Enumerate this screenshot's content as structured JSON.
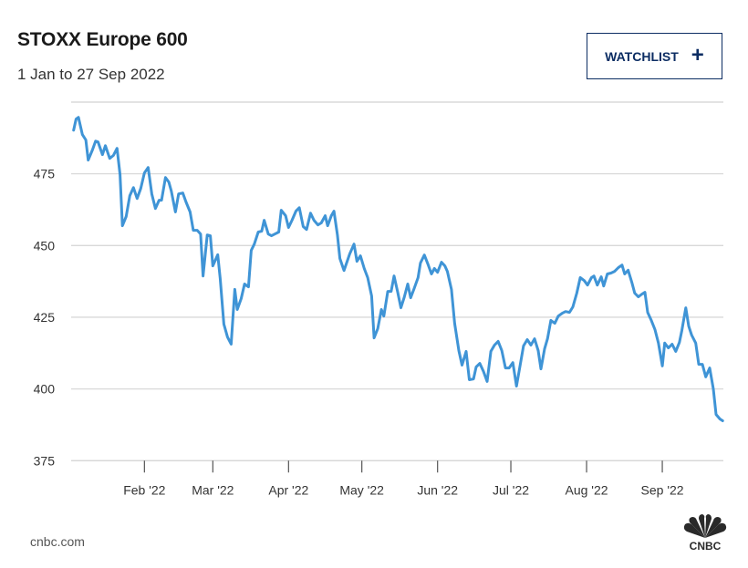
{
  "header": {
    "title": "STOXX Europe 600",
    "subtitle": "1 Jan to 27 Sep 2022"
  },
  "watchlist_button": {
    "label": "WATCHLIST",
    "icon": "plus-icon"
  },
  "footer": {
    "source": "cnbc.com",
    "logo": "CNBC"
  },
  "colors": {
    "line": "#3f94d6",
    "grid": "#d9d9d9",
    "button": "#0c2d63"
  },
  "chart_data": {
    "type": "line",
    "title": "STOXX Europe 600",
    "subtitle": "1 Jan to 27 Sep 2022",
    "xlabel": "",
    "ylabel": "",
    "x_unit": "day of year 2022",
    "xlim": [
      1,
      268
    ],
    "ylim": [
      370,
      500
    ],
    "grid": true,
    "yticks": [
      375,
      400,
      425,
      450,
      475
    ],
    "xticks": [
      {
        "day": 31,
        "label": "Feb '22"
      },
      {
        "day": 59,
        "label": "Mar '22"
      },
      {
        "day": 90,
        "label": "Apr '22"
      },
      {
        "day": 120,
        "label": "May '22"
      },
      {
        "day": 151,
        "label": "Jun '22"
      },
      {
        "day": 181,
        "label": "Jul '22"
      },
      {
        "day": 212,
        "label": "Aug '22"
      },
      {
        "day": 243,
        "label": "Sep '22"
      }
    ],
    "series": [
      {
        "name": "STOXX Europe 600",
        "x": [
          2,
          3,
          4,
          5.6,
          7,
          8,
          9.7,
          11,
          12,
          13.8,
          15,
          16.8,
          18.3,
          19.8,
          21,
          22,
          23.5,
          25,
          26.5,
          28,
          29.5,
          31,
          32.5,
          34,
          35.5,
          37,
          38,
          39.6,
          41,
          42,
          43.7,
          45,
          46.7,
          48,
          49.7,
          51,
          52.6,
          54,
          55,
          56.7,
          58,
          59,
          61,
          62,
          63.5,
          65,
          66.5,
          68,
          69,
          70.6,
          72,
          73.6,
          74.7,
          76,
          77.6,
          79,
          80,
          81.7,
          83,
          84.4,
          86,
          87,
          88.8,
          90,
          91.4,
          93,
          94.4,
          96,
          97.4,
          99,
          100.4,
          102,
          103.4,
          105,
          106,
          107.5,
          108.6,
          110,
          111,
          112.7,
          114,
          115,
          116.8,
          118,
          119.4,
          121,
          122.4,
          124,
          125,
          126.5,
          128,
          129,
          130.6,
          132,
          133.2,
          134.7,
          136,
          137.3,
          138.8,
          140,
          141.4,
          143,
          144,
          145.6,
          147,
          148.5,
          149.7,
          151,
          152.6,
          154,
          155,
          156.7,
          158,
          159.7,
          161,
          162.7,
          164,
          165.7,
          166.8,
          168.3,
          169.8,
          171.3,
          172.8,
          174.3,
          175.8,
          177.3,
          178.8,
          180.3,
          181.8,
          183.3,
          184.7,
          186.2,
          187.7,
          189.2,
          190.7,
          192.2,
          193.3,
          194.8,
          196,
          197.4,
          199,
          200.4,
          202,
          203.4,
          205,
          206.4,
          208,
          209.4,
          211,
          212.4,
          214,
          215,
          216.4,
          218,
          219,
          220.5,
          222,
          223.5,
          225,
          226.5,
          227.6,
          229,
          230.6,
          231.7,
          233.2,
          234.7,
          235.9,
          237,
          238.5,
          240,
          241.4,
          243,
          244,
          245.5,
          247,
          248.5,
          250,
          251,
          252.6,
          253.8,
          255,
          256.7,
          257.9,
          259.4,
          260.8,
          262.4,
          263.9,
          265,
          266.6,
          267.7
        ],
        "values": [
          490.2,
          494.1,
          494.7,
          488.7,
          486.8,
          479.8,
          483.3,
          486.4,
          486.1,
          481.7,
          484.8,
          480.4,
          481.4,
          483.9,
          474.7,
          456.9,
          460.1,
          467.4,
          470.2,
          466.4,
          469.9,
          475.3,
          477.2,
          468,
          462.9,
          465.8,
          465.8,
          473.7,
          472.1,
          469,
          461.7,
          468,
          468.3,
          465.2,
          461.7,
          455.3,
          455.3,
          454,
          439.4,
          453.7,
          453.4,
          442.9,
          446.8,
          438.5,
          422.6,
          418.1,
          415.6,
          434.7,
          427.7,
          431.5,
          436.6,
          435.6,
          448.3,
          450.5,
          454.7,
          455,
          458.8,
          454,
          453.4,
          454,
          454.7,
          462.3,
          460.4,
          456.3,
          458.8,
          462,
          463.2,
          456.6,
          455.6,
          461.3,
          458.8,
          457.2,
          457.9,
          460.4,
          456.9,
          460.4,
          462,
          453.7,
          445.5,
          441.3,
          444.5,
          447,
          450.5,
          444.5,
          446.4,
          442,
          438.8,
          432.4,
          417.8,
          421,
          427.7,
          425.4,
          434,
          434,
          439.4,
          433.7,
          428.3,
          431.8,
          436.6,
          431.8,
          435,
          438.8,
          443.9,
          446.7,
          443.6,
          440.1,
          442,
          440.7,
          444.2,
          442.9,
          441,
          434.7,
          422.9,
          413.4,
          408.3,
          413.1,
          403.2,
          403.5,
          407.7,
          408.9,
          406.1,
          402.6,
          413.1,
          415.3,
          416.6,
          413.4,
          407.3,
          407.3,
          409.2,
          401,
          407.7,
          415,
          417.2,
          415.3,
          417.5,
          413.4,
          407,
          414,
          417.5,
          423.9,
          422.9,
          425.4,
          426.4,
          427,
          426.7,
          428.6,
          433.4,
          438.8,
          437.8,
          436.2,
          438.8,
          439.4,
          436.2,
          439.1,
          435.9,
          440.1,
          440.4,
          441,
          442.3,
          443.2,
          440.1,
          441.4,
          437,
          433.4,
          432.1,
          433.1,
          433.7,
          426.7,
          423.9,
          420.7,
          416,
          408,
          416,
          414.3,
          415.6,
          413.1,
          416.2,
          420.4,
          428.3,
          421.9,
          418.8,
          416,
          408.6,
          408.6,
          404.2,
          407.3,
          400,
          391.1,
          389.5,
          388.9
        ]
      }
    ]
  }
}
